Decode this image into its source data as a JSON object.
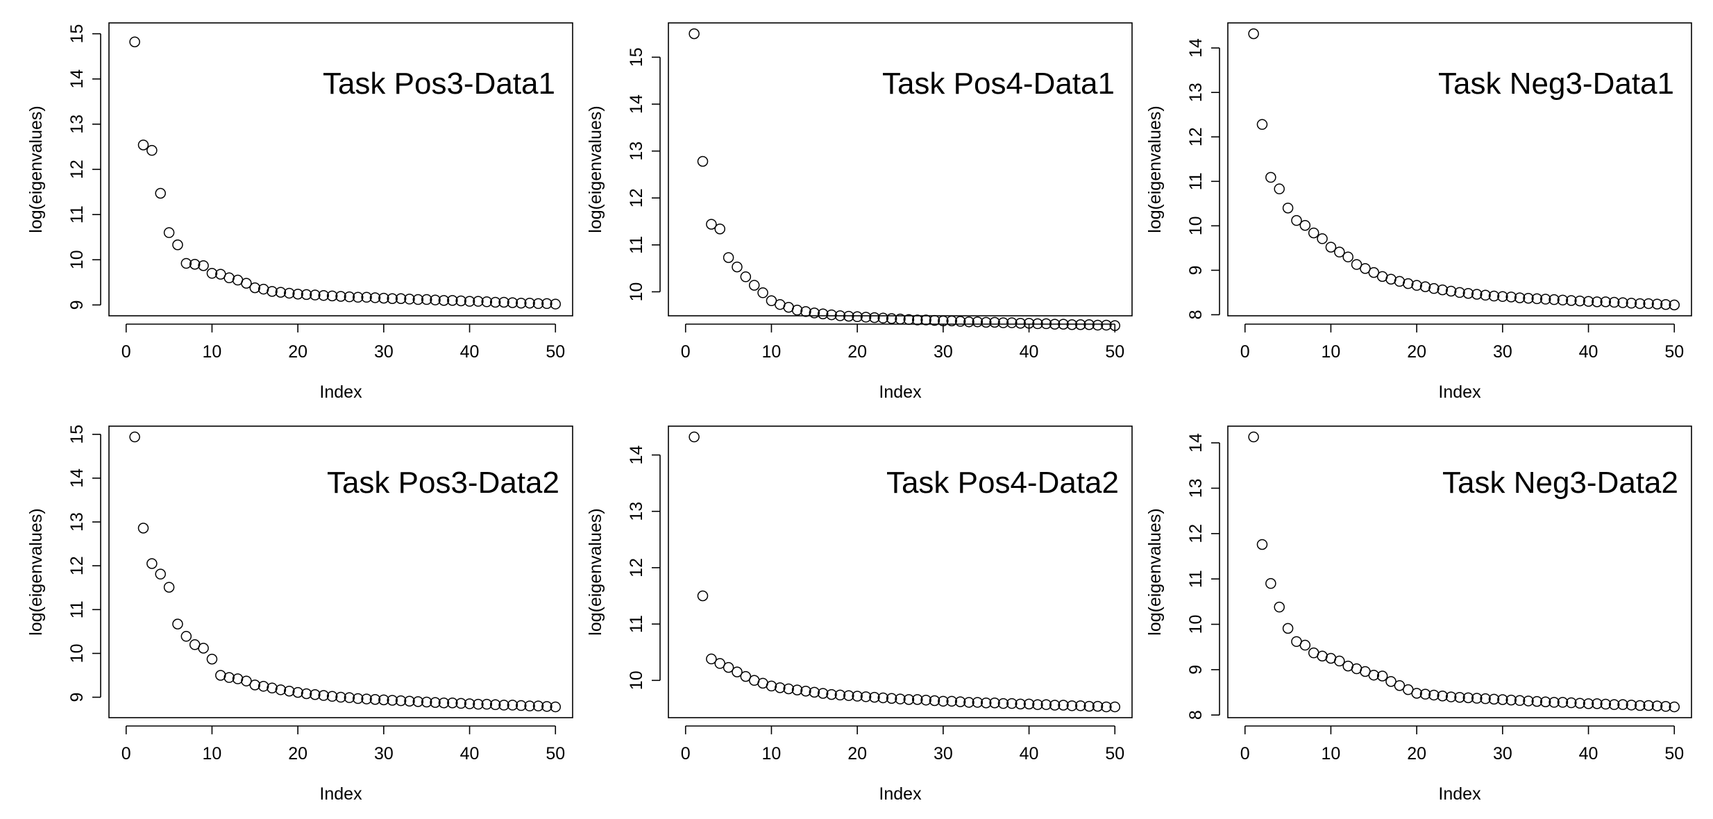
{
  "figure": {
    "panel_count": 6,
    "layout": "2 rows x 3 columns"
  },
  "chart_data": [
    {
      "type": "scatter",
      "title": "Task Pos3-Data1",
      "xlabel": "Index",
      "ylabel": "log(eigenvalues)",
      "xlim": [
        0,
        50
      ],
      "ylim": [
        9,
        15
      ],
      "xticks": [
        0,
        10,
        20,
        30,
        40,
        50
      ],
      "yticks": [
        9,
        10,
        11,
        12,
        13,
        14,
        15
      ],
      "grid": false,
      "marker": "open-circle",
      "x": [
        1,
        2,
        3,
        4,
        5,
        6,
        7,
        8,
        9,
        10,
        11,
        12,
        13,
        14,
        15,
        16,
        17,
        18,
        19,
        20,
        21,
        22,
        23,
        24,
        25,
        26,
        27,
        28,
        29,
        30,
        31,
        32,
        33,
        34,
        35,
        36,
        37,
        38,
        39,
        40,
        41,
        42,
        43,
        44,
        45,
        46,
        47,
        48,
        49,
        50
      ],
      "y": [
        14.82,
        12.54,
        12.42,
        11.47,
        10.6,
        10.33,
        9.92,
        9.9,
        9.87,
        9.7,
        9.68,
        9.6,
        9.55,
        9.48,
        9.38,
        9.35,
        9.3,
        9.28,
        9.26,
        9.24,
        9.23,
        9.22,
        9.21,
        9.2,
        9.19,
        9.18,
        9.17,
        9.17,
        9.16,
        9.15,
        9.14,
        9.14,
        9.13,
        9.12,
        9.12,
        9.11,
        9.1,
        9.1,
        9.09,
        9.08,
        9.08,
        9.07,
        9.06,
        9.06,
        9.05,
        9.04,
        9.04,
        9.03,
        9.03,
        9.02
      ]
    },
    {
      "type": "scatter",
      "title": "Task Pos4-Data1",
      "xlabel": "Index",
      "ylabel": "log(eigenvalues)",
      "xlim": [
        0,
        50
      ],
      "ylim": [
        9.72,
        15.5
      ],
      "xticks": [
        0,
        10,
        20,
        30,
        40,
        50
      ],
      "yticks": [
        10,
        11,
        12,
        13,
        14,
        15
      ],
      "grid": false,
      "marker": "open-circle",
      "x": [
        1,
        2,
        3,
        4,
        5,
        6,
        7,
        8,
        9,
        10,
        11,
        12,
        13,
        14,
        15,
        16,
        17,
        18,
        19,
        20,
        21,
        22,
        23,
        24,
        25,
        26,
        27,
        28,
        29,
        30,
        31,
        32,
        33,
        34,
        35,
        36,
        37,
        38,
        39,
        40,
        41,
        42,
        43,
        44,
        45,
        46,
        47,
        48,
        49,
        50
      ],
      "y": [
        15.5,
        12.78,
        11.44,
        11.34,
        10.73,
        10.53,
        10.32,
        10.14,
        9.98,
        9.81,
        9.73,
        9.67,
        9.61,
        9.58,
        9.55,
        9.53,
        9.51,
        9.49,
        9.48,
        9.47,
        9.46,
        9.45,
        9.44,
        9.43,
        9.42,
        9.41,
        9.4,
        9.4,
        9.39,
        9.38,
        9.38,
        9.37,
        9.36,
        9.36,
        9.35,
        9.35,
        9.34,
        9.34,
        9.33,
        9.33,
        9.32,
        9.32,
        9.31,
        9.31,
        9.3,
        9.3,
        9.3,
        9.29,
        9.29,
        9.28
      ]
    },
    {
      "type": "scatter",
      "title": "Task Neg3-Data1",
      "xlabel": "Index",
      "ylabel": "log(eigenvalues)",
      "xlim": [
        0,
        50
      ],
      "ylim": [
        8.22,
        14.32
      ],
      "xticks": [
        0,
        10,
        20,
        30,
        40,
        50
      ],
      "yticks": [
        8,
        9,
        10,
        11,
        12,
        13,
        14
      ],
      "grid": false,
      "marker": "open-circle",
      "x": [
        1,
        2,
        3,
        4,
        5,
        6,
        7,
        8,
        9,
        10,
        11,
        12,
        13,
        14,
        15,
        16,
        17,
        18,
        19,
        20,
        21,
        22,
        23,
        24,
        25,
        26,
        27,
        28,
        29,
        30,
        31,
        32,
        33,
        34,
        35,
        36,
        37,
        38,
        39,
        40,
        41,
        42,
        43,
        44,
        45,
        46,
        47,
        48,
        49,
        50
      ],
      "y": [
        14.32,
        12.28,
        11.09,
        10.83,
        10.4,
        10.12,
        10.01,
        9.84,
        9.71,
        9.52,
        9.41,
        9.3,
        9.13,
        9.04,
        8.95,
        8.86,
        8.8,
        8.75,
        8.7,
        8.66,
        8.63,
        8.59,
        8.56,
        8.53,
        8.5,
        8.48,
        8.46,
        8.44,
        8.42,
        8.41,
        8.4,
        8.38,
        8.37,
        8.36,
        8.35,
        8.34,
        8.33,
        8.32,
        8.31,
        8.3,
        8.29,
        8.29,
        8.28,
        8.27,
        8.26,
        8.25,
        8.25,
        8.24,
        8.23,
        8.22
      ]
    },
    {
      "type": "scatter",
      "title": "Task Pos3-Data2",
      "xlabel": "Index",
      "ylabel": "log(eigenvalues)",
      "xlim": [
        0,
        50
      ],
      "ylim": [
        8.78,
        14.94
      ],
      "xticks": [
        0,
        10,
        20,
        30,
        40,
        50
      ],
      "yticks": [
        9,
        10,
        11,
        12,
        13,
        14,
        15
      ],
      "grid": false,
      "marker": "open-circle",
      "x": [
        1,
        2,
        3,
        4,
        5,
        6,
        7,
        8,
        9,
        10,
        11,
        12,
        13,
        14,
        15,
        16,
        17,
        18,
        19,
        20,
        21,
        22,
        23,
        24,
        25,
        26,
        27,
        28,
        29,
        30,
        31,
        32,
        33,
        34,
        35,
        36,
        37,
        38,
        39,
        40,
        41,
        42,
        43,
        44,
        45,
        46,
        47,
        48,
        49,
        50
      ],
      "y": [
        14.94,
        12.86,
        12.05,
        11.81,
        11.51,
        10.67,
        10.39,
        10.2,
        10.12,
        9.87,
        9.5,
        9.45,
        9.42,
        9.37,
        9.28,
        9.25,
        9.21,
        9.17,
        9.14,
        9.11,
        9.08,
        9.06,
        9.04,
        9.02,
        9.0,
        8.99,
        8.97,
        8.96,
        8.95,
        8.94,
        8.93,
        8.92,
        8.91,
        8.9,
        8.89,
        8.88,
        8.87,
        8.87,
        8.86,
        8.85,
        8.84,
        8.84,
        8.83,
        8.82,
        8.82,
        8.81,
        8.8,
        8.8,
        8.79,
        8.78
      ]
    },
    {
      "type": "scatter",
      "title": "Task Pos4-Data2",
      "xlabel": "Index",
      "ylabel": "log(eigenvalues)",
      "xlim": [
        0,
        50
      ],
      "ylim": [
        9.53,
        14.32
      ],
      "xticks": [
        0,
        10,
        20,
        30,
        40,
        50
      ],
      "yticks": [
        10,
        11,
        12,
        13,
        14
      ],
      "grid": false,
      "marker": "open-circle",
      "x": [
        1,
        2,
        3,
        4,
        5,
        6,
        7,
        8,
        9,
        10,
        11,
        12,
        13,
        14,
        15,
        16,
        17,
        18,
        19,
        20,
        21,
        22,
        23,
        24,
        25,
        26,
        27,
        28,
        29,
        30,
        31,
        32,
        33,
        34,
        35,
        36,
        37,
        38,
        39,
        40,
        41,
        42,
        43,
        44,
        45,
        46,
        47,
        48,
        49,
        50
      ],
      "y": [
        14.32,
        11.5,
        10.38,
        10.3,
        10.23,
        10.15,
        10.07,
        10.0,
        9.95,
        9.9,
        9.87,
        9.85,
        9.83,
        9.81,
        9.79,
        9.77,
        9.75,
        9.74,
        9.73,
        9.72,
        9.71,
        9.7,
        9.69,
        9.68,
        9.67,
        9.66,
        9.66,
        9.65,
        9.64,
        9.63,
        9.63,
        9.62,
        9.61,
        9.61,
        9.6,
        9.6,
        9.59,
        9.59,
        9.58,
        9.58,
        9.57,
        9.57,
        9.56,
        9.56,
        9.55,
        9.55,
        9.54,
        9.54,
        9.53,
        9.53
      ]
    },
    {
      "type": "scatter",
      "title": "Task Neg3-Data2",
      "xlabel": "Index",
      "ylabel": "log(eigenvalues)",
      "xlim": [
        0,
        50
      ],
      "ylim": [
        8.18,
        14.13
      ],
      "xticks": [
        0,
        10,
        20,
        30,
        40,
        50
      ],
      "yticks": [
        8,
        9,
        10,
        11,
        12,
        13,
        14
      ],
      "grid": false,
      "marker": "open-circle",
      "x": [
        1,
        2,
        3,
        4,
        5,
        6,
        7,
        8,
        9,
        10,
        11,
        12,
        13,
        14,
        15,
        16,
        17,
        18,
        19,
        20,
        21,
        22,
        23,
        24,
        25,
        26,
        27,
        28,
        29,
        30,
        31,
        32,
        33,
        34,
        35,
        36,
        37,
        38,
        39,
        40,
        41,
        42,
        43,
        44,
        45,
        46,
        47,
        48,
        49,
        50
      ],
      "y": [
        14.13,
        11.76,
        10.9,
        10.38,
        9.91,
        9.62,
        9.54,
        9.37,
        9.3,
        9.25,
        9.19,
        9.08,
        9.02,
        8.96,
        8.88,
        8.86,
        8.74,
        8.65,
        8.56,
        8.48,
        8.46,
        8.44,
        8.42,
        8.4,
        8.39,
        8.38,
        8.37,
        8.36,
        8.35,
        8.34,
        8.33,
        8.32,
        8.31,
        8.3,
        8.29,
        8.28,
        8.28,
        8.27,
        8.26,
        8.25,
        8.25,
        8.24,
        8.23,
        8.23,
        8.22,
        8.21,
        8.21,
        8.2,
        8.19,
        8.18
      ]
    }
  ]
}
